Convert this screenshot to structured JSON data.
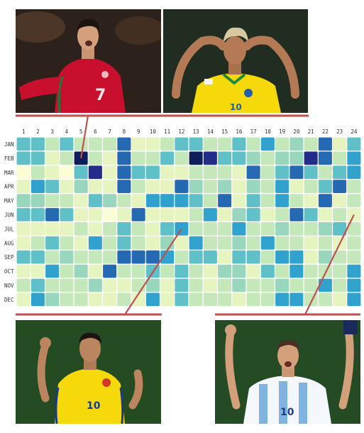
{
  "colors": {
    "palette": [
      "#fbfdd4",
      "#e6f4c0",
      "#c5e8ba",
      "#98d6be",
      "#60c0c8",
      "#30a2cd",
      "#2569b2",
      "#242c8a",
      "#0d1e5a"
    ],
    "cell_border": "#ffffff",
    "connector": "#c0504d"
  },
  "photos": [
    {
      "name": "photo-player-portugal",
      "jersey": "#c8102e",
      "accent": "#1a7a3a",
      "number": "7"
    },
    {
      "name": "photo-player-brazil",
      "jersey": "#f5d90a",
      "accent": "#1f5fa8",
      "number": "10"
    },
    {
      "name": "photo-player-colombia",
      "jersey": "#f5d90a",
      "accent": "#1b3a8c",
      "number": "10"
    },
    {
      "name": "photo-player-argentina",
      "jersey": "#f4f7fb",
      "accent": "#7fb4e0",
      "number": "10"
    }
  ],
  "chart_data": {
    "type": "heatmap",
    "x_labels": [
      "1",
      "2",
      "3",
      "4",
      "5",
      "6",
      "7",
      "8",
      "9",
      "10",
      "11",
      "12",
      "13",
      "14",
      "15",
      "16",
      "17",
      "18",
      "19",
      "20",
      "21",
      "22",
      "23",
      "24"
    ],
    "y_labels": [
      "JAN",
      "FEB",
      "MAR",
      "APR",
      "MAY",
      "JUN",
      "JUL",
      "AUG",
      "SEP",
      "OCT",
      "NOV",
      "DEC"
    ],
    "value_range": [
      0,
      8
    ],
    "values": [
      [
        4,
        4,
        2,
        4,
        2,
        2,
        2,
        6,
        1,
        1,
        2,
        4,
        4,
        2,
        2,
        4,
        2,
        5,
        2,
        3,
        2,
        6,
        1,
        4
      ],
      [
        4,
        4,
        1,
        2,
        8,
        2,
        1,
        6,
        2,
        2,
        4,
        2,
        8,
        7,
        4,
        4,
        3,
        2,
        3,
        3,
        7,
        6,
        2,
        5
      ],
      [
        0,
        2,
        1,
        0,
        4,
        7,
        1,
        6,
        4,
        4,
        1,
        1,
        2,
        2,
        2,
        1,
        6,
        2,
        4,
        6,
        4,
        2,
        4,
        5
      ],
      [
        1,
        5,
        4,
        1,
        3,
        1,
        1,
        6,
        2,
        1,
        1,
        6,
        3,
        2,
        3,
        1,
        3,
        2,
        5,
        1,
        2,
        4,
        6,
        2
      ],
      [
        3,
        3,
        2,
        2,
        1,
        4,
        3,
        2,
        1,
        5,
        5,
        5,
        4,
        2,
        6,
        1,
        4,
        2,
        5,
        2,
        1,
        6,
        1,
        2
      ],
      [
        4,
        4,
        6,
        4,
        1,
        1,
        0,
        1,
        6,
        1,
        1,
        1,
        2,
        5,
        1,
        3,
        4,
        1,
        2,
        6,
        4,
        1,
        2,
        1
      ],
      [
        1,
        1,
        1,
        1,
        2,
        1,
        2,
        4,
        2,
        1,
        4,
        5,
        2,
        2,
        2,
        5,
        2,
        2,
        3,
        2,
        2,
        3,
        4,
        2
      ],
      [
        1,
        2,
        4,
        2,
        1,
        5,
        2,
        4,
        2,
        1,
        3,
        1,
        5,
        2,
        2,
        3,
        2,
        5,
        2,
        2,
        1,
        2,
        1,
        2
      ],
      [
        4,
        4,
        2,
        3,
        2,
        2,
        2,
        6,
        6,
        6,
        5,
        2,
        4,
        4,
        1,
        4,
        4,
        2,
        5,
        5,
        1,
        3,
        2,
        2
      ],
      [
        1,
        1,
        5,
        2,
        3,
        1,
        6,
        2,
        2,
        4,
        2,
        4,
        2,
        1,
        3,
        3,
        1,
        4,
        2,
        5,
        2,
        2,
        2,
        5
      ],
      [
        2,
        4,
        2,
        2,
        2,
        3,
        1,
        1,
        2,
        3,
        1,
        4,
        2,
        1,
        2,
        3,
        2,
        2,
        3,
        2,
        2,
        5,
        2,
        5
      ],
      [
        1,
        5,
        3,
        2,
        2,
        1,
        1,
        2,
        1,
        5,
        1,
        4,
        2,
        2,
        2,
        1,
        2,
        2,
        5,
        5,
        2,
        2,
        1,
        5
      ]
    ],
    "highlights": [
      {
        "row": 1,
        "col": 4,
        "photo": "photo-player-portugal"
      },
      {
        "row": 6,
        "col": 11,
        "photo": "photo-player-colombia"
      },
      {
        "row": 5,
        "col": 23,
        "photo": "photo-player-argentina"
      }
    ]
  }
}
